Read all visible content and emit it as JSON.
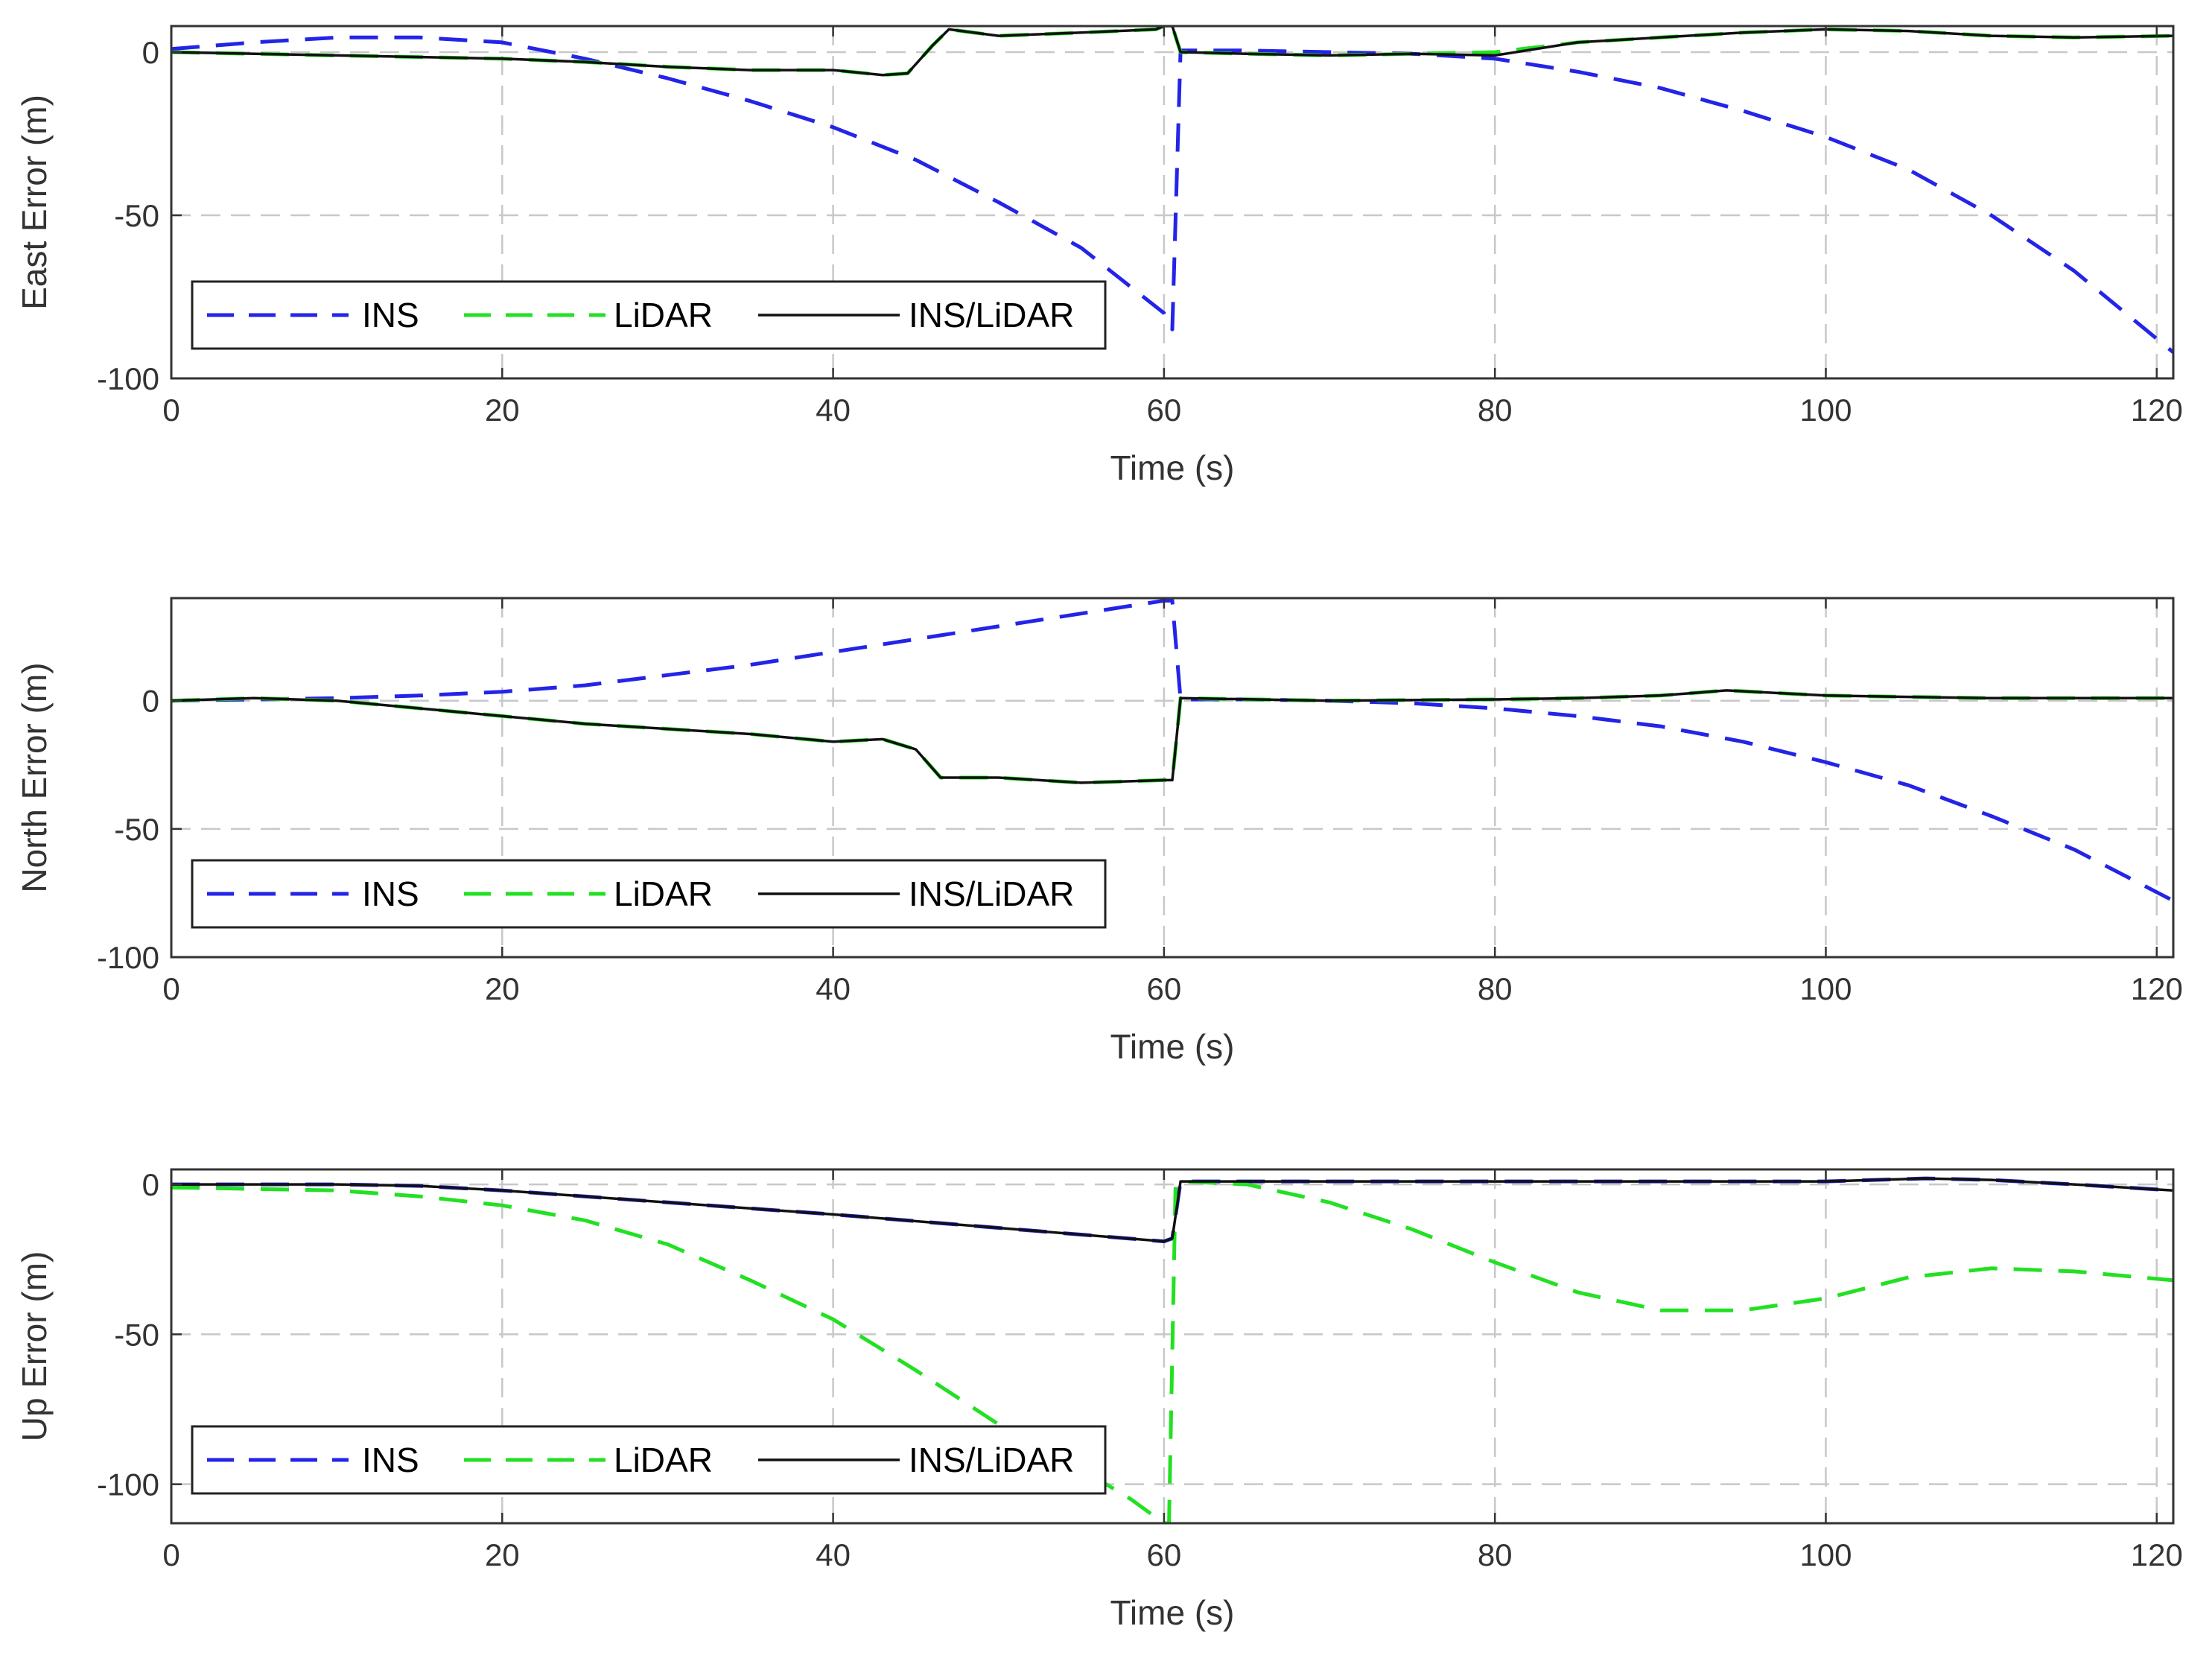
{
  "colors": {
    "ins": "#2424e8",
    "lidar": "#22e022",
    "fused": "#111111",
    "grid": "#c8c8c8",
    "axis": "#333333"
  },
  "legend": {
    "ins": "INS",
    "lidar": "LiDAR",
    "fused": "INS/LiDAR"
  },
  "chart_data": [
    {
      "type": "line",
      "title": "",
      "xlabel": "Time (s)",
      "ylabel": "East Error (m)",
      "xlim": [
        0,
        121
      ],
      "ylim": [
        -100,
        8
      ],
      "xticks": [
        0,
        20,
        40,
        60,
        80,
        100,
        120
      ],
      "yticks": [
        0,
        -50,
        -100
      ],
      "grid": true,
      "legend_position": "bottom-left",
      "series": [
        {
          "name": "INS",
          "style": "dashed",
          "x": [
            0,
            5,
            10,
            15,
            20,
            25,
            30,
            35,
            40,
            45,
            50,
            55,
            60,
            60.5,
            61,
            65,
            70,
            75,
            80,
            85,
            90,
            95,
            100,
            105,
            110,
            115,
            121
          ],
          "y": [
            1,
            3,
            4.5,
            4.5,
            3,
            -2,
            -8,
            -15,
            -23,
            -33,
            -46,
            -60,
            -80,
            -85,
            0.5,
            0.5,
            0,
            -0.5,
            -2,
            -6,
            -11,
            -18,
            -26,
            -36,
            -50,
            -67,
            -92
          ]
        },
        {
          "name": "LiDAR",
          "style": "dashed",
          "x": [
            0,
            10,
            20,
            25,
            30,
            35,
            40,
            43,
            44.5,
            46,
            47,
            50,
            55,
            59.5,
            60,
            60.5,
            61,
            65,
            70,
            75,
            80,
            85,
            90,
            95,
            100,
            105,
            110,
            115,
            121
          ],
          "y": [
            0,
            -1,
            -2,
            -3,
            -4.5,
            -5.5,
            -5.5,
            -7,
            -6.5,
            2,
            7,
            5,
            6,
            7,
            8,
            8,
            0,
            -0.5,
            -1,
            -0.5,
            0,
            3,
            4.5,
            6,
            7,
            6.5,
            5,
            4.5,
            5
          ]
        },
        {
          "name": "INS/LiDAR",
          "style": "solid",
          "x": [
            0,
            10,
            20,
            25,
            30,
            35,
            40,
            43,
            44.5,
            46,
            47,
            50,
            55,
            59.5,
            60,
            60.5,
            61,
            65,
            70,
            75,
            80,
            85,
            90,
            95,
            100,
            105,
            110,
            115,
            121
          ],
          "y": [
            0,
            -1,
            -2,
            -3,
            -4.5,
            -5.5,
            -5.5,
            -7,
            -6.5,
            2,
            7,
            5,
            6,
            7,
            8,
            8,
            0,
            -0.5,
            -1,
            -0.5,
            -1,
            3,
            4.5,
            6,
            7,
            6.5,
            5,
            4.5,
            5
          ]
        }
      ]
    },
    {
      "type": "line",
      "title": "",
      "xlabel": "Time (s)",
      "ylabel": "North Error (m)",
      "xlim": [
        0,
        121
      ],
      "ylim": [
        -100,
        40
      ],
      "xticks": [
        0,
        20,
        40,
        60,
        80,
        100,
        120
      ],
      "yticks": [
        0,
        -50,
        -100
      ],
      "grid": true,
      "legend_position": "bottom-left",
      "series": [
        {
          "name": "INS",
          "style": "dashed",
          "x": [
            0,
            5,
            10,
            15,
            20,
            25,
            30,
            35,
            40,
            45,
            50,
            55,
            60,
            60.5,
            61,
            65,
            70,
            75,
            80,
            85,
            90,
            95,
            100,
            105,
            110,
            115,
            121
          ],
          "y": [
            0,
            0.5,
            1,
            2,
            3.5,
            6,
            10,
            14,
            19,
            24,
            29,
            34,
            39,
            39,
            0.5,
            0.5,
            0,
            -1,
            -3,
            -6,
            -10,
            -16,
            -24,
            -33,
            -45,
            -58,
            -78
          ]
        },
        {
          "name": "LiDAR",
          "style": "dashed",
          "x": [
            0,
            5,
            10,
            15,
            20,
            25,
            30,
            35,
            40,
            43,
            45,
            46.5,
            50,
            55,
            60,
            60.5,
            61,
            70,
            80,
            85,
            90,
            94,
            100,
            110,
            121
          ],
          "y": [
            0,
            1,
            0,
            -3,
            -6,
            -9,
            -11,
            -13,
            -16,
            -15,
            -19,
            -30,
            -30,
            -32,
            -31,
            -31,
            1,
            0,
            0.5,
            1,
            2,
            4,
            2,
            1,
            1
          ]
        },
        {
          "name": "INS/LiDAR",
          "style": "solid",
          "x": [
            0,
            5,
            10,
            15,
            20,
            25,
            30,
            35,
            40,
            43,
            45,
            46.5,
            50,
            55,
            60,
            60.5,
            61,
            70,
            80,
            85,
            90,
            94,
            100,
            110,
            121
          ],
          "y": [
            0,
            1,
            0,
            -3,
            -6,
            -9,
            -11,
            -13,
            -16,
            -15,
            -19,
            -30,
            -30,
            -32,
            -31,
            -31,
            1,
            0,
            0.5,
            1,
            2,
            4,
            2,
            1,
            1
          ]
        }
      ]
    },
    {
      "type": "line",
      "title": "",
      "xlabel": "Time (s)",
      "ylabel": "Up Error (m)",
      "xlim": [
        0,
        121
      ],
      "ylim": [
        -113,
        5
      ],
      "xticks": [
        0,
        20,
        40,
        60,
        80,
        100,
        120
      ],
      "yticks": [
        0,
        -50,
        -100
      ],
      "grid": true,
      "legend_position": "bottom-left",
      "series": [
        {
          "name": "INS",
          "style": "dashed",
          "x": [
            0,
            10,
            15,
            20,
            30,
            40,
            50,
            60,
            60.5,
            61,
            70,
            80,
            90,
            100,
            106,
            110,
            115,
            121
          ],
          "y": [
            0,
            0,
            -0.5,
            -2,
            -6,
            -10,
            -14.5,
            -19,
            -18,
            1,
            1,
            1,
            1,
            1,
            2,
            1.5,
            0,
            -2
          ]
        },
        {
          "name": "LiDAR",
          "style": "dashed",
          "x": [
            0,
            10,
            15,
            20,
            25,
            30,
            35,
            40,
            45,
            50,
            55,
            58,
            60,
            60.3,
            60.7,
            61,
            65,
            70,
            75,
            80,
            85,
            90,
            95,
            100,
            105,
            110,
            115,
            121
          ],
          "y": [
            -1,
            -2,
            -4,
            -7,
            -12,
            -20,
            -32,
            -45,
            -62,
            -80,
            -95,
            -105,
            -113,
            -113,
            0,
            1,
            0,
            -6,
            -15,
            -26,
            -36,
            -42,
            -42,
            -38,
            -31,
            -28,
            -29,
            -32
          ]
        },
        {
          "name": "INS/LiDAR",
          "style": "solid",
          "x": [
            0,
            10,
            15,
            20,
            30,
            40,
            50,
            60,
            60.5,
            61,
            70,
            80,
            90,
            100,
            106,
            110,
            115,
            121
          ],
          "y": [
            0,
            0,
            -0.5,
            -2,
            -6,
            -10,
            -14.5,
            -19,
            -18,
            1,
            1,
            1,
            1,
            1,
            2,
            1.5,
            0,
            -2
          ]
        }
      ]
    }
  ]
}
